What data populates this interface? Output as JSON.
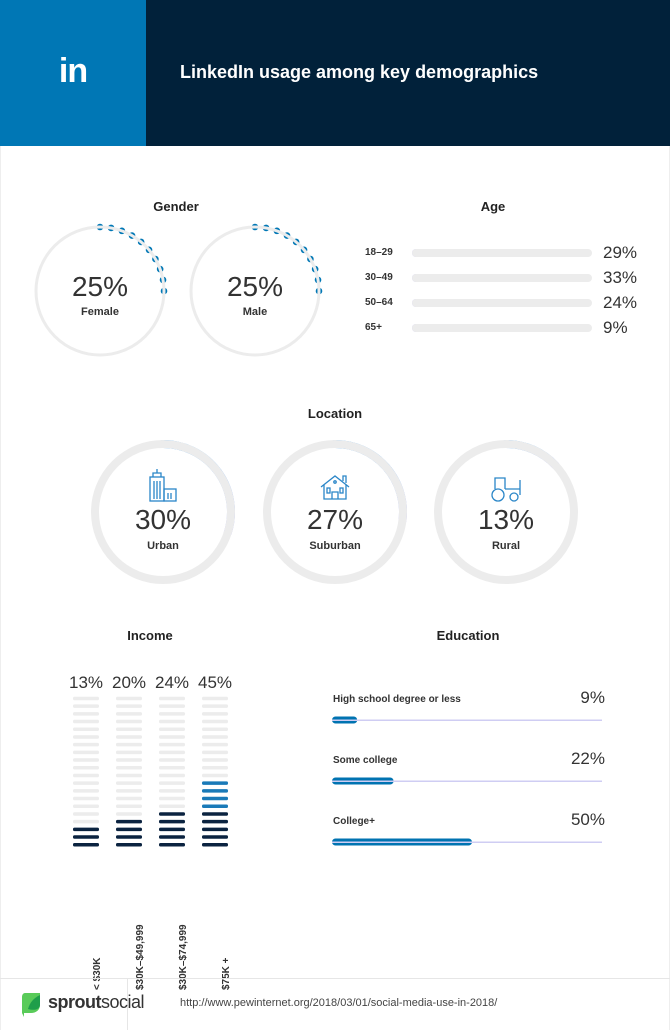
{
  "header": {
    "logo": "in",
    "title": "LinkedIn usage among key demographics"
  },
  "footer": {
    "brand_bold": "sprout",
    "brand_light": "social",
    "source_url": "http://www.pewinternet.org/2018/03/01/social-media-use-in-2018/"
  },
  "colors": {
    "linkedin_blue": "#0077b5",
    "navy": "#01213a",
    "age_fill": "#c5c0f5",
    "track": "#ececec",
    "location_arc_start": "#5aabf0",
    "location_arc_end": "#bcb8f5",
    "income_dark": "#0b2340",
    "income_blue": "#1a7ab8",
    "education_fill": "#0073b1",
    "education_track": "#cfcdf3"
  },
  "chart_data": [
    {
      "type": "radial",
      "title": "Gender",
      "categories": [
        "Female",
        "Male"
      ],
      "values": [
        25,
        25
      ],
      "labels": [
        "25%",
        "25%"
      ],
      "unit": "%"
    },
    {
      "type": "bar",
      "title": "Age",
      "orientation": "horizontal",
      "categories": [
        "18–29",
        "30–49",
        "50–64",
        "65+"
      ],
      "values": [
        29,
        33,
        24,
        9
      ],
      "labels": [
        "29%",
        "33%",
        "24%",
        "9%"
      ],
      "xlim": [
        0,
        100
      ]
    },
    {
      "type": "radial",
      "title": "Location",
      "categories": [
        "Urban",
        "Suburban",
        "Rural"
      ],
      "values": [
        30,
        27,
        13
      ],
      "labels": [
        "30%",
        "27%",
        "13%"
      ],
      "icons": [
        "city-buildings-icon",
        "house-icon",
        "tractor-icon"
      ]
    },
    {
      "type": "bar",
      "title": "Income",
      "orientation": "vertical",
      "categories": [
        "< $30K",
        "$30K–$49,999",
        "$30K–$74,999",
        "$75K +"
      ],
      "values": [
        13,
        20,
        24,
        45
      ],
      "labels": [
        "13%",
        "20%",
        "24%",
        "45%"
      ],
      "ylim": [
        0,
        100
      ]
    },
    {
      "type": "bar",
      "title": "Education",
      "orientation": "horizontal",
      "categories": [
        "High school degree or less",
        "Some college",
        "College+"
      ],
      "values": [
        9,
        22,
        50
      ],
      "labels": [
        "9%",
        "22%",
        "50%"
      ],
      "xlim": [
        0,
        100
      ]
    }
  ]
}
